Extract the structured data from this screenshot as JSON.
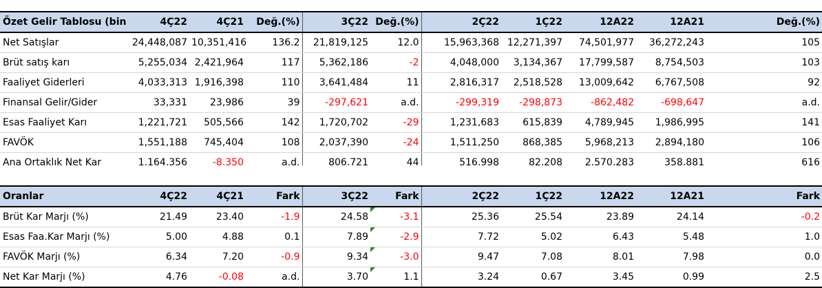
{
  "main_table": {
    "headers": [
      "Özet Gelir Tablosu (bin TL)",
      "4Ç22",
      "4Ç21",
      "Değ.(%)",
      "3Ç22",
      "Değ.(%)",
      "2Ç22",
      "1Ç22",
      "12A22",
      "12A21",
      "Değ.(%)"
    ],
    "rows": [
      {
        "label": "Net Satışlar",
        "cells": [
          "24,448,087",
          "10,351,416",
          "136.2",
          "21,819,125",
          "12.0",
          "15,963,368",
          "12,271,397",
          "74,501,977",
          "36,272,243",
          "105"
        ]
      },
      {
        "label": "Brüt satış karı",
        "cells": [
          "5,255,034",
          "2,421,964",
          "117",
          "5,362,186",
          "-2",
          "4,048,000",
          "3,134,367",
          "17,799,587",
          "8,754,503",
          "103"
        ]
      },
      {
        "label": "Faaliyet Giderleri",
        "cells": [
          "4,033,313",
          "1,916,398",
          "110",
          "3,641,484",
          "11",
          "2,816,317",
          "2,518,528",
          "13,009,642",
          "6,767,508",
          "92"
        ]
      },
      {
        "label": "Finansal Gelir/Gider",
        "cells": [
          "33,331",
          "23,986",
          "39",
          "-297,621",
          "a.d.",
          "-299,319",
          "-298,873",
          "-862,482",
          "-698,647",
          "a.d."
        ]
      },
      {
        "label": "Esas Faaliyet Karı",
        "cells": [
          "1,221,721",
          "505,566",
          "142",
          "1,720,702",
          "-29",
          "1,231,683",
          "615,839",
          "4,789,945",
          "1,986,995",
          "141"
        ]
      },
      {
        "label": "FAVÖK",
        "cells": [
          "1,551,188",
          "745,404",
          "108",
          "2,037,390",
          "-24",
          "1,511,250",
          "868,385",
          "5,968,213",
          "2,894,180",
          "106"
        ]
      },
      {
        "label": "Ana Ortaklık Net Kar",
        "cells": [
          "1,164,356",
          "-8,350",
          "a.d.",
          "806,721",
          "44",
          "516,998",
          "82,208",
          "2,570,283",
          "358,881",
          "616"
        ]
      }
    ]
  },
  "ratio_table": {
    "headers": [
      "Oranlar",
      "4Ç22",
      "4Ç21",
      "Fark",
      "3Ç22",
      "Fark",
      "2Ç22",
      "1Ç22",
      "12A22",
      "12A21",
      "Fark"
    ],
    "rows": [
      {
        "label": "Brüt Kar Marjı (%)",
        "cells": [
          "21.49",
          "23.40",
          "-1.9",
          "24.58",
          "-3.1",
          "25.36",
          "25.54",
          "23.89",
          "24.14",
          "-0.2"
        ]
      },
      {
        "label": "Esas Faa.Kar Marjı (%)",
        "cells": [
          "5.00",
          "4.88",
          "0.1",
          "7.89",
          "-2.9",
          "7.72",
          "5.02",
          "6.43",
          "5.48",
          "1.0"
        ]
      },
      {
        "label": "FAVÖK Marjı (%)",
        "cells": [
          "6.34",
          "7.20",
          "-0.9",
          "9.34",
          "-3.0",
          "9.47",
          "7.08",
          "8.01",
          "7.98",
          "0.0"
        ]
      },
      {
        "label": "Net Kar Marjı (%)",
        "cells": [
          "4.76",
          "-0.08",
          "a.d.",
          "3.70",
          "1.1",
          "3.24",
          "0.67",
          "3.45",
          "0.99",
          "2.5"
        ]
      }
    ]
  },
  "colors": {
    "header_bg": "#c9d8ec",
    "negative_text": "#ff0000",
    "comment_marker": "#2e8b3a"
  }
}
